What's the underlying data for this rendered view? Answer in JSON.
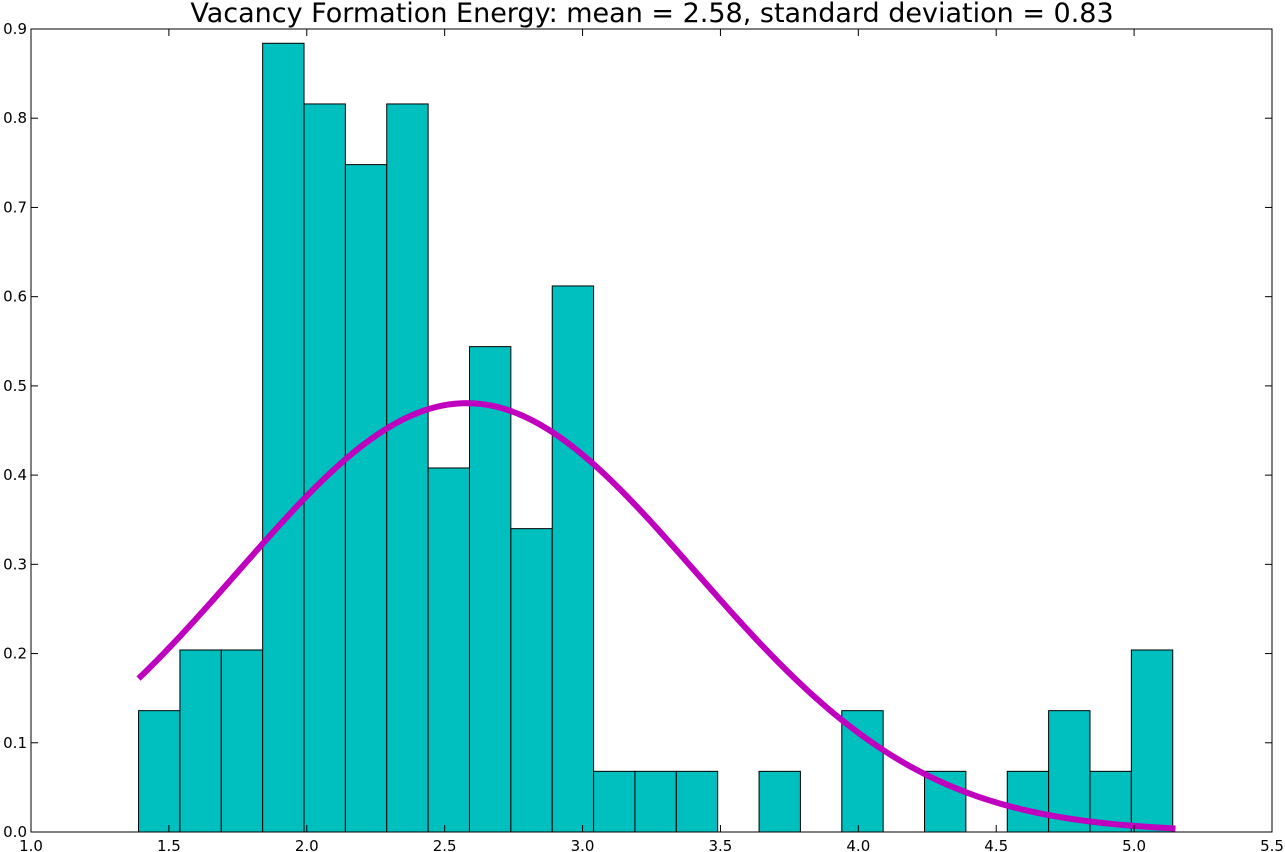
{
  "chart_data": {
    "type": "bar",
    "title": "Vacancy Formation Energy: mean = 2.58,  standard deviation = 0.83",
    "xlabel": "",
    "ylabel": "",
    "xlim": [
      1.0,
      5.5
    ],
    "ylim": [
      0.0,
      0.9
    ],
    "xticks": [
      "1.0",
      "1.5",
      "2.0",
      "2.5",
      "3.0",
      "3.5",
      "4.0",
      "4.5",
      "5.0",
      "5.5"
    ],
    "yticks": [
      "0.0",
      "0.1",
      "0.2",
      "0.3",
      "0.4",
      "0.5",
      "0.6",
      "0.7",
      "0.8",
      "0.9"
    ],
    "grid": false,
    "legend": "none",
    "histogram": {
      "bin_start": 1.39,
      "bin_width": 0.15,
      "values": [
        0.136,
        0.204,
        0.204,
        0.884,
        0.816,
        0.748,
        0.816,
        0.408,
        0.544,
        0.34,
        0.612,
        0.068,
        0.068,
        0.068,
        0.0,
        0.068,
        0.0,
        0.136,
        0.0,
        0.068,
        0.0,
        0.068,
        0.136,
        0.068,
        0.204
      ],
      "color": "#00bfbf",
      "edge_color": "#000000"
    },
    "curve": {
      "type": "normal_pdf",
      "mean": 2.58,
      "std": 0.83,
      "x_range": [
        1.39,
        5.15
      ],
      "color": "#bf00bf"
    }
  }
}
